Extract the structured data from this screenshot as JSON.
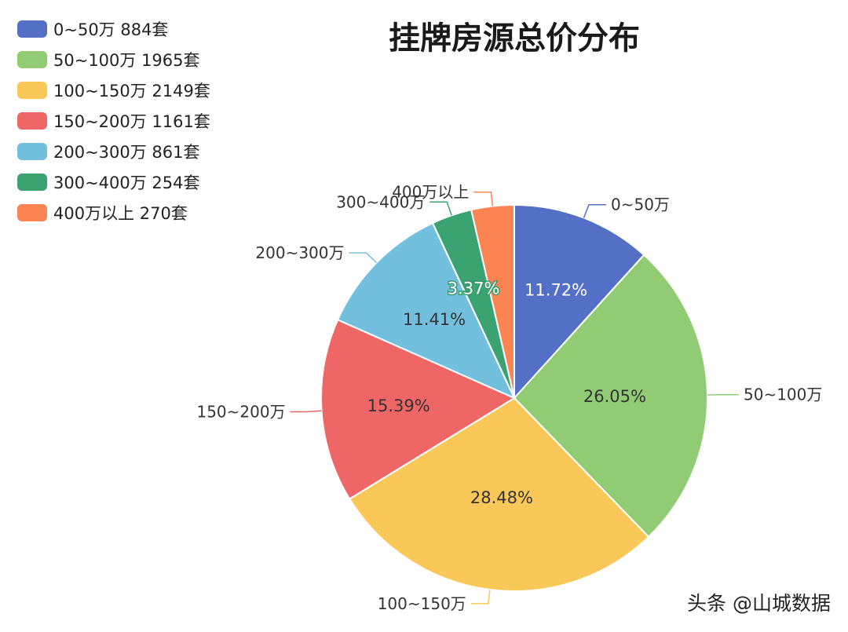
{
  "chart_data": {
    "type": "pie",
    "title": "挂牌房源总价分布",
    "categories": [
      "0~50万",
      "50~100万",
      "100~150万",
      "150~200万",
      "200~300万",
      "300~400万",
      "400万以上"
    ],
    "counts": [
      884,
      1965,
      2149,
      1161,
      861,
      254,
      270
    ],
    "percent_labels": [
      "11.72%",
      "26.05%",
      "28.48%",
      "15.39%",
      "11.41%",
      "3.37%",
      ""
    ],
    "legend_entries": [
      "0~50万 884套",
      "50~100万 1965套",
      "100~150万 2149套",
      "150~200万 1161套",
      "200~300万 861套",
      "300~400万 254套",
      "400万以上 270套"
    ],
    "colors": [
      "#5470c6",
      "#91cc75",
      "#fac858",
      "#ee6666",
      "#73c0de",
      "#3ba272",
      "#fc8452"
    ],
    "legend_position": "top-left",
    "start_angle": "12 o'clock",
    "direction": "clockwise"
  },
  "watermark": "头条 @山城数据"
}
